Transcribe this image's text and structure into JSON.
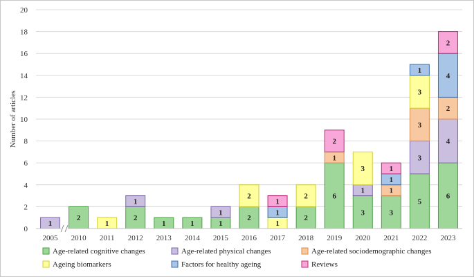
{
  "chart_data": {
    "type": "bar",
    "stacked": true,
    "title": "",
    "xlabel": "",
    "ylabel": "Number of articles",
    "ylim": [
      0,
      20
    ],
    "yticks": [
      0,
      2,
      4,
      6,
      8,
      10,
      12,
      14,
      16,
      18,
      20
    ],
    "grid": true,
    "axis_break_after": "2005",
    "legend_position": "bottom",
    "categories": [
      "2005",
      "2010",
      "2011",
      "2012",
      "2013",
      "2014",
      "2015",
      "2016",
      "2017",
      "2018",
      "2019",
      "2020",
      "2021",
      "2022",
      "2023"
    ],
    "series": [
      {
        "name": "Age-related cognitive changes",
        "color": "#9fd79a",
        "border": "#4d9e48",
        "values": [
          0,
          2,
          0,
          2,
          1,
          1,
          1,
          2,
          0,
          2,
          6,
          3,
          3,
          5,
          6
        ]
      },
      {
        "name": "Age-related physical changes",
        "color": "#cbbfe0",
        "border": "#7d6aa6",
        "values": [
          1,
          0,
          0,
          1,
          0,
          0,
          1,
          0,
          0,
          0,
          0,
          1,
          0,
          3,
          4
        ]
      },
      {
        "name": "Age-related sociodemographic changes",
        "color": "#f8c8a0",
        "border": "#d58b4e",
        "values": [
          0,
          0,
          0,
          0,
          0,
          0,
          0,
          0,
          0,
          0,
          1,
          0,
          1,
          3,
          2
        ]
      },
      {
        "name": "Ageing biomarkers",
        "color": "#ffff9e",
        "border": "#cfcf3a",
        "values": [
          0,
          0,
          1,
          0,
          0,
          0,
          0,
          2,
          1,
          2,
          0,
          3,
          0,
          3,
          0
        ]
      },
      {
        "name": "Factors for healthy ageing",
        "color": "#a8c4e6",
        "border": "#3f6ea8",
        "values": [
          0,
          0,
          0,
          0,
          0,
          0,
          0,
          0,
          1,
          0,
          0,
          0,
          1,
          1,
          4
        ]
      },
      {
        "name": "Reviews",
        "color": "#f7a8d8",
        "border": "#c0267a",
        "values": [
          0,
          0,
          0,
          0,
          0,
          0,
          0,
          0,
          1,
          0,
          2,
          0,
          1,
          0,
          2
        ]
      }
    ]
  }
}
